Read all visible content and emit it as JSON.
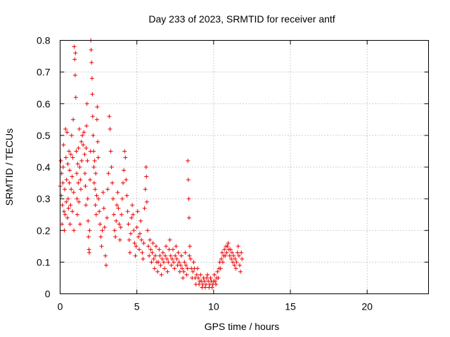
{
  "chart_data": {
    "type": "scatter",
    "title": "Day 233 of 2023, SRMTID for receiver antf",
    "xlabel": "GPS time / hours",
    "ylabel": "SRMTID / TECUs",
    "xlim": [
      0,
      24
    ],
    "ylim": [
      0,
      0.8
    ],
    "xticks": [
      0,
      5,
      10,
      15,
      20
    ],
    "xtick_labels": [
      "0",
      "5",
      "10",
      "15",
      "20"
    ],
    "yticks": [
      0,
      0.1,
      0.2,
      0.3,
      0.4,
      0.5,
      0.6,
      0.7,
      0.8
    ],
    "ytick_labels": [
      "0",
      "0.1",
      "0.2",
      "0.3",
      "0.4",
      "0.5",
      "0.6",
      "0.7",
      "0.8"
    ],
    "grid": true,
    "marker": "+",
    "color": "#ee0000",
    "series": [
      {
        "name": "antf",
        "points": [
          [
            0.0,
            0.34
          ],
          [
            0.05,
            0.42
          ],
          [
            0.08,
            0.31
          ],
          [
            0.1,
            0.38
          ],
          [
            0.12,
            0.22
          ],
          [
            0.15,
            0.28
          ],
          [
            0.18,
            0.35
          ],
          [
            0.2,
            0.4
          ],
          [
            0.22,
            0.47
          ],
          [
            0.25,
            0.26
          ],
          [
            0.28,
            0.2
          ],
          [
            0.3,
            0.33
          ],
          [
            0.32,
            0.25
          ],
          [
            0.35,
            0.52
          ],
          [
            0.38,
            0.43
          ],
          [
            0.4,
            0.29
          ],
          [
            0.42,
            0.36
          ],
          [
            0.45,
            0.51
          ],
          [
            0.48,
            0.24
          ],
          [
            0.5,
            0.41
          ],
          [
            0.52,
            0.3
          ],
          [
            0.55,
            0.27
          ],
          [
            0.58,
            0.45
          ],
          [
            0.6,
            0.35
          ],
          [
            0.62,
            0.39
          ],
          [
            0.65,
            0.22
          ],
          [
            0.68,
            0.28
          ],
          [
            0.7,
            0.44
          ],
          [
            0.72,
            0.33
          ],
          [
            0.75,
            0.5
          ],
          [
            0.78,
            0.37
          ],
          [
            0.8,
            0.26
          ],
          [
            0.82,
            0.43
          ],
          [
            0.85,
            0.55
          ],
          [
            0.88,
            0.32
          ],
          [
            0.9,
            0.2
          ],
          [
            0.92,
            0.78
          ],
          [
            0.95,
            0.74
          ],
          [
            0.98,
            0.69
          ],
          [
            1.0,
            0.76
          ],
          [
            1.02,
            0.62
          ],
          [
            1.05,
            0.45
          ],
          [
            1.08,
            0.38
          ],
          [
            1.1,
            0.3
          ],
          [
            1.12,
            0.25
          ],
          [
            1.15,
            0.41
          ],
          [
            1.18,
            0.35
          ],
          [
            1.2,
            0.46
          ],
          [
            1.22,
            0.29
          ],
          [
            1.25,
            0.52
          ],
          [
            1.28,
            0.4
          ],
          [
            1.3,
            0.22
          ],
          [
            1.32,
            0.36
          ],
          [
            1.35,
            0.33
          ],
          [
            1.38,
            0.48
          ],
          [
            1.4,
            0.42
          ],
          [
            1.45,
            0.5
          ],
          [
            1.5,
            0.47
          ],
          [
            1.55,
            0.51
          ],
          [
            1.6,
            0.44
          ],
          [
            1.62,
            0.38
          ],
          [
            1.65,
            0.34
          ],
          [
            1.68,
            0.28
          ],
          [
            1.7,
            0.46
          ],
          [
            1.72,
            0.53
          ],
          [
            1.75,
            0.6
          ],
          [
            1.78,
            0.42
          ],
          [
            1.8,
            0.3
          ],
          [
            1.82,
            0.23
          ],
          [
            1.85,
            0.18
          ],
          [
            1.88,
            0.14
          ],
          [
            1.9,
            0.13
          ],
          [
            1.92,
            0.2
          ],
          [
            1.95,
            0.36
          ],
          [
            1.98,
            0.45
          ],
          [
            2.0,
            0.8
          ],
          [
            2.02,
            0.77
          ],
          [
            2.05,
            0.73
          ],
          [
            2.08,
            0.68
          ],
          [
            2.1,
            0.63
          ],
          [
            2.12,
            0.56
          ],
          [
            2.15,
            0.5
          ],
          [
            2.18,
            0.45
          ],
          [
            2.2,
            0.4
          ],
          [
            2.22,
            0.35
          ],
          [
            2.25,
            0.42
          ],
          [
            2.28,
            0.33
          ],
          [
            2.3,
            0.28
          ],
          [
            2.32,
            0.38
          ],
          [
            2.35,
            0.25
          ],
          [
            2.38,
            0.31
          ],
          [
            2.4,
            0.55
          ],
          [
            2.42,
            0.59
          ],
          [
            2.45,
            0.48
          ],
          [
            2.48,
            0.43
          ],
          [
            2.5,
            0.3
          ],
          [
            2.55,
            0.26
          ],
          [
            2.6,
            0.22
          ],
          [
            2.65,
            0.18
          ],
          [
            2.7,
            0.15
          ],
          [
            2.75,
            0.2
          ],
          [
            2.8,
            0.32
          ],
          [
            2.85,
            0.27
          ],
          [
            2.9,
            0.21
          ],
          [
            2.95,
            0.12
          ],
          [
            3.0,
            0.09
          ],
          [
            3.05,
            0.24
          ],
          [
            3.1,
            0.33
          ],
          [
            3.15,
            0.38
          ],
          [
            3.2,
            0.56
          ],
          [
            3.25,
            0.52
          ],
          [
            3.3,
            0.45
          ],
          [
            3.35,
            0.4
          ],
          [
            3.4,
            0.35
          ],
          [
            3.45,
            0.3
          ],
          [
            3.5,
            0.25
          ],
          [
            3.55,
            0.2
          ],
          [
            3.6,
            0.18
          ],
          [
            3.65,
            0.23
          ],
          [
            3.7,
            0.28
          ],
          [
            3.75,
            0.32
          ],
          [
            3.8,
            0.27
          ],
          [
            3.85,
            0.22
          ],
          [
            3.9,
            0.17
          ],
          [
            3.95,
            0.21
          ],
          [
            4.0,
            0.25
          ],
          [
            4.05,
            0.3
          ],
          [
            4.1,
            0.35
          ],
          [
            4.15,
            0.39
          ],
          [
            4.2,
            0.45
          ],
          [
            4.25,
            0.43
          ],
          [
            4.3,
            0.36
          ],
          [
            4.35,
            0.31
          ],
          [
            4.4,
            0.26
          ],
          [
            4.45,
            0.22
          ],
          [
            4.5,
            0.17
          ],
          [
            4.55,
            0.13
          ],
          [
            4.6,
            0.19
          ],
          [
            4.65,
            0.24
          ],
          [
            4.7,
            0.28
          ],
          [
            4.75,
            0.25
          ],
          [
            4.8,
            0.2
          ],
          [
            4.85,
            0.16
          ],
          [
            4.9,
            0.12
          ],
          [
            4.95,
            0.15
          ],
          [
            5.0,
            0.21
          ],
          [
            5.05,
            0.26
          ],
          [
            5.1,
            0.18
          ],
          [
            5.15,
            0.14
          ],
          [
            5.2,
            0.19
          ],
          [
            5.25,
            0.23
          ],
          [
            5.3,
            0.17
          ],
          [
            5.35,
            0.13
          ],
          [
            5.4,
            0.11
          ],
          [
            5.45,
            0.16
          ],
          [
            5.5,
            0.27
          ],
          [
            5.55,
            0.33
          ],
          [
            5.6,
            0.4
          ],
          [
            5.62,
            0.37
          ],
          [
            5.65,
            0.29
          ],
          [
            5.7,
            0.2
          ],
          [
            5.75,
            0.15
          ],
          [
            5.8,
            0.12
          ],
          [
            5.85,
            0.17
          ],
          [
            5.9,
            0.14
          ],
          [
            5.95,
            0.1
          ],
          [
            6.0,
            0.13
          ],
          [
            6.05,
            0.16
          ],
          [
            6.1,
            0.11
          ],
          [
            6.15,
            0.08
          ],
          [
            6.2,
            0.12
          ],
          [
            6.25,
            0.15
          ],
          [
            6.3,
            0.1
          ],
          [
            6.35,
            0.07
          ],
          [
            6.4,
            0.1
          ],
          [
            6.45,
            0.14
          ],
          [
            6.5,
            0.12
          ],
          [
            6.55,
            0.09
          ],
          [
            6.6,
            0.06
          ],
          [
            6.65,
            0.11
          ],
          [
            6.7,
            0.13
          ],
          [
            6.75,
            0.1
          ],
          [
            6.8,
            0.08
          ],
          [
            6.85,
            0.12
          ],
          [
            6.9,
            0.15
          ],
          [
            6.95,
            0.11
          ],
          [
            7.0,
            0.07
          ],
          [
            7.05,
            0.1
          ],
          [
            7.1,
            0.14
          ],
          [
            7.15,
            0.17
          ],
          [
            7.2,
            0.12
          ],
          [
            7.25,
            0.09
          ],
          [
            7.3,
            0.11
          ],
          [
            7.35,
            0.14
          ],
          [
            7.4,
            0.1
          ],
          [
            7.45,
            0.08
          ],
          [
            7.5,
            0.12
          ],
          [
            7.55,
            0.15
          ],
          [
            7.6,
            0.11
          ],
          [
            7.65,
            0.09
          ],
          [
            7.7,
            0.13
          ],
          [
            7.75,
            0.1
          ],
          [
            7.8,
            0.07
          ],
          [
            7.85,
            0.09
          ],
          [
            7.9,
            0.12
          ],
          [
            7.95,
            0.08
          ],
          [
            8.0,
            0.05
          ],
          [
            8.05,
            0.07
          ],
          [
            8.1,
            0.1
          ],
          [
            8.15,
            0.13
          ],
          [
            8.2,
            0.09
          ],
          [
            8.25,
            0.06
          ],
          [
            8.3,
            0.08
          ],
          [
            8.32,
            0.42
          ],
          [
            8.35,
            0.36
          ],
          [
            8.38,
            0.3
          ],
          [
            8.4,
            0.24
          ],
          [
            8.42,
            0.12
          ],
          [
            8.45,
            0.15
          ],
          [
            8.5,
            0.11
          ],
          [
            8.55,
            0.08
          ],
          [
            8.6,
            0.05
          ],
          [
            8.65,
            0.07
          ],
          [
            8.7,
            0.1
          ],
          [
            8.75,
            0.08
          ],
          [
            8.8,
            0.05
          ],
          [
            8.85,
            0.03
          ],
          [
            8.9,
            0.06
          ],
          [
            8.95,
            0.08
          ],
          [
            9.0,
            0.05
          ],
          [
            9.05,
            0.03
          ],
          [
            9.1,
            0.04
          ],
          [
            9.15,
            0.06
          ],
          [
            9.2,
            0.04
          ],
          [
            9.25,
            0.02
          ],
          [
            9.3,
            0.03
          ],
          [
            9.35,
            0.05
          ],
          [
            9.4,
            0.04
          ],
          [
            9.45,
            0.02
          ],
          [
            9.5,
            0.03
          ],
          [
            9.55,
            0.05
          ],
          [
            9.6,
            0.06
          ],
          [
            9.65,
            0.04
          ],
          [
            9.7,
            0.02
          ],
          [
            9.75,
            0.03
          ],
          [
            9.8,
            0.05
          ],
          [
            9.85,
            0.04
          ],
          [
            9.9,
            0.02
          ],
          [
            9.95,
            0.03
          ],
          [
            10.0,
            0.04
          ],
          [
            10.05,
            0.06
          ],
          [
            10.1,
            0.04
          ],
          [
            10.15,
            0.03
          ],
          [
            10.2,
            0.05
          ],
          [
            10.25,
            0.07
          ],
          [
            10.3,
            0.05
          ],
          [
            10.35,
            0.08
          ],
          [
            10.4,
            0.1
          ],
          [
            10.45,
            0.08
          ],
          [
            10.5,
            0.11
          ],
          [
            10.55,
            0.13
          ],
          [
            10.6,
            0.1
          ],
          [
            10.65,
            0.12
          ],
          [
            10.7,
            0.14
          ],
          [
            10.75,
            0.12
          ],
          [
            10.8,
            0.15
          ],
          [
            10.85,
            0.13
          ],
          [
            10.9,
            0.15
          ],
          [
            10.95,
            0.16
          ],
          [
            11.0,
            0.14
          ],
          [
            11.05,
            0.12
          ],
          [
            11.1,
            0.14
          ],
          [
            11.15,
            0.11
          ],
          [
            11.2,
            0.13
          ],
          [
            11.25,
            0.1
          ],
          [
            11.3,
            0.12
          ],
          [
            11.35,
            0.09
          ],
          [
            11.4,
            0.11
          ],
          [
            11.45,
            0.08
          ],
          [
            11.5,
            0.1
          ],
          [
            11.55,
            0.13
          ],
          [
            11.6,
            0.15
          ],
          [
            11.65,
            0.12
          ],
          [
            11.7,
            0.09
          ],
          [
            11.75,
            0.07
          ],
          [
            11.8,
            0.13
          ],
          [
            11.85,
            0.11
          ]
        ]
      }
    ]
  }
}
